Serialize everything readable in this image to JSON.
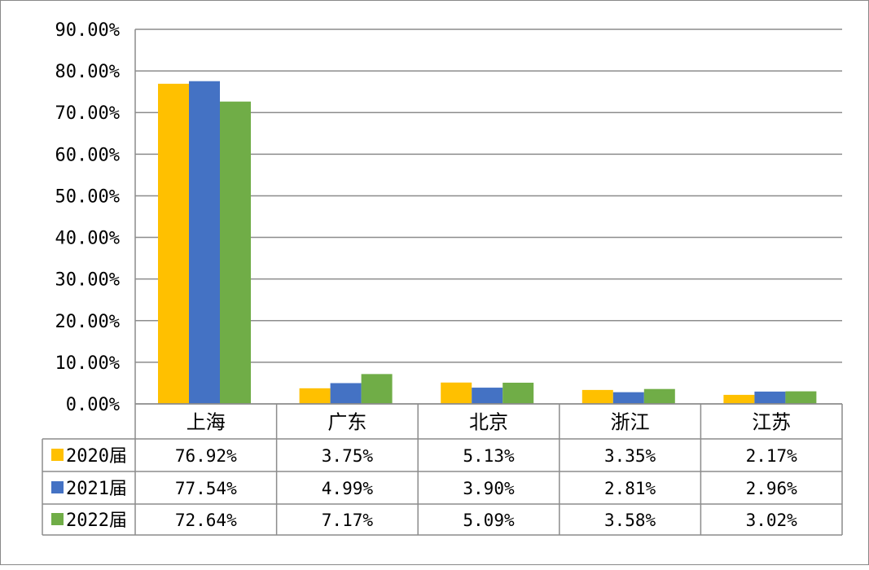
{
  "chart_data": {
    "type": "bar",
    "categories": [
      "上海",
      "广东",
      "北京",
      "浙江",
      "江苏"
    ],
    "series": [
      {
        "name": "2020届",
        "color": "#FFC000",
        "values": [
          76.92,
          3.75,
          5.13,
          3.35,
          2.17
        ],
        "labels": [
          "76.92%",
          "3.75%",
          "5.13%",
          "3.35%",
          "2.17%"
        ]
      },
      {
        "name": "2021届",
        "color": "#4472C4",
        "values": [
          77.54,
          4.99,
          3.9,
          2.81,
          2.96
        ],
        "labels": [
          "77.54%",
          "4.99%",
          "3.90%",
          "2.81%",
          "2.96%"
        ]
      },
      {
        "name": "2022届",
        "color": "#70AD47",
        "values": [
          72.64,
          7.17,
          5.09,
          3.58,
          3.02
        ],
        "labels": [
          "72.64%",
          "7.17%",
          "5.09%",
          "3.58%",
          "3.02%"
        ]
      }
    ],
    "y_ticks": [
      "0.00%",
      "10.00%",
      "20.00%",
      "30.00%",
      "40.00%",
      "50.00%",
      "60.00%",
      "70.00%",
      "80.00%",
      "90.00%"
    ],
    "ylim": [
      0,
      90
    ],
    "grid": true,
    "legend": "data-table"
  }
}
